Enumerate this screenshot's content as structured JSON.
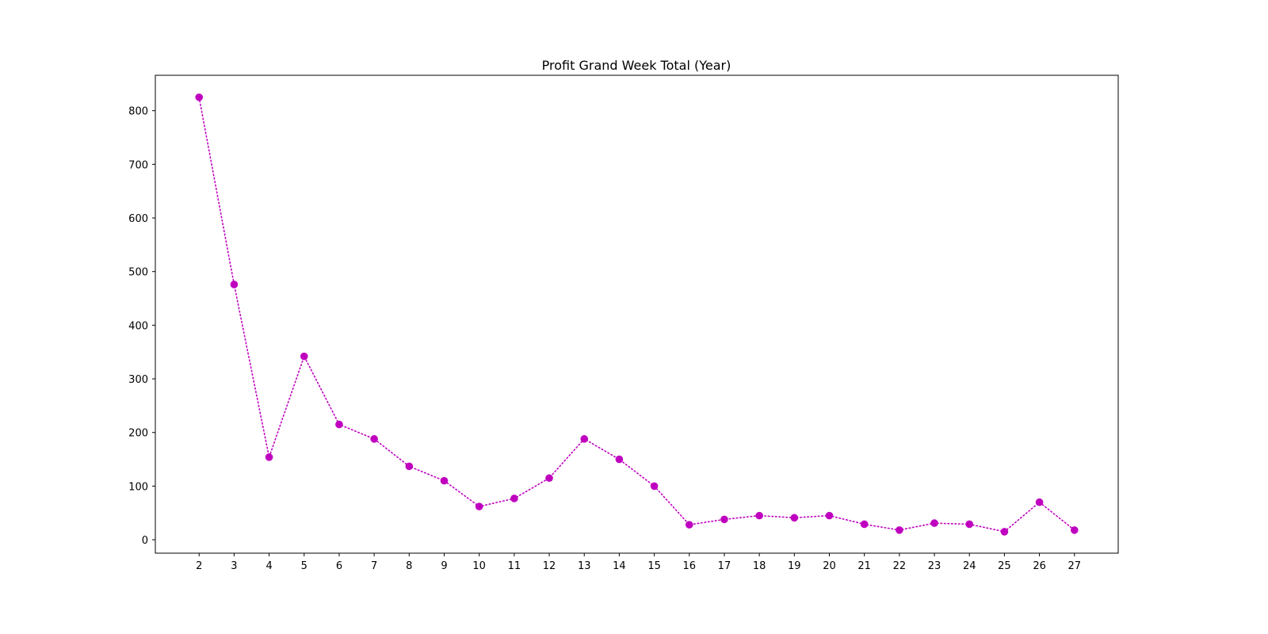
{
  "chart_data": {
    "type": "line",
    "title": "Profit Grand Week Total (Year)",
    "xlabel": "",
    "ylabel": "",
    "x": [
      2,
      3,
      4,
      5,
      6,
      7,
      8,
      9,
      10,
      11,
      12,
      13,
      14,
      15,
      16,
      17,
      18,
      19,
      20,
      21,
      22,
      23,
      24,
      25,
      26,
      27
    ],
    "series": [
      {
        "values": [
          825,
          476,
          154,
          342,
          215,
          188,
          137,
          110,
          62,
          77,
          115,
          188,
          150,
          100,
          28,
          38,
          45,
          41,
          45,
          29,
          18,
          31,
          29,
          15,
          70,
          18
        ],
        "color": "#bf00bf",
        "line_style": "dotted",
        "marker": "circle"
      }
    ],
    "xlim": [
      0.75,
      28.25
    ],
    "ylim": [
      -25,
      866
    ],
    "x_ticks": [
      "2",
      "3",
      "4",
      "5",
      "6",
      "7",
      "8",
      "9",
      "10",
      "11",
      "12",
      "13",
      "14",
      "15",
      "16",
      "17",
      "18",
      "19",
      "20",
      "21",
      "22",
      "23",
      "24",
      "25",
      "26",
      "27"
    ],
    "y_ticks": [
      "0",
      "100",
      "200",
      "300",
      "400",
      "500",
      "600",
      "700",
      "800"
    ],
    "grid": false,
    "legend": "none"
  }
}
